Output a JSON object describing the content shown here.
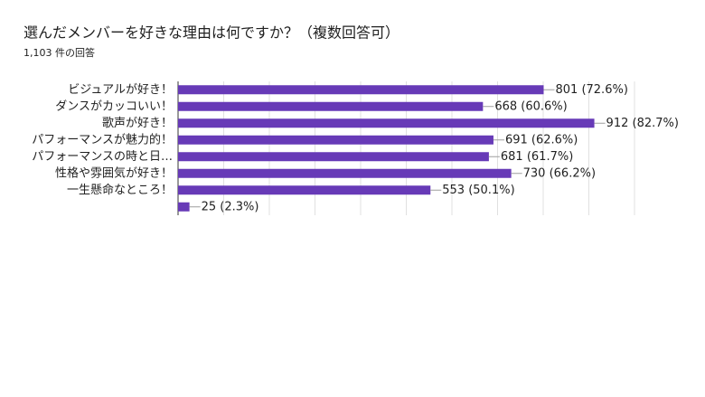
{
  "chart_data": {
    "type": "bar",
    "orientation": "horizontal",
    "title": "選んだメンバーを好きな理由は何ですか？（複数回答可）",
    "subtitle": "1,103 件の回答",
    "categories": [
      "ビジュアルが好き！",
      "ダンスがカッコいい！",
      "歌声が好き！",
      "パフォーマンスが魅力的！",
      "パフォーマンスの時と日…",
      "性格や雰囲気が好き！",
      "一生懸命なところ！",
      null
    ],
    "values": [
      801,
      668,
      912,
      691,
      681,
      730,
      553,
      25
    ],
    "value_labels": [
      "801 (72.6%)",
      "668 (60.6%)",
      "912 (82.7%)",
      "691 (62.6%)",
      "681 (61.7%)",
      "730 (66.2%)",
      "553 (50.1%)",
      "25 (2.3%)"
    ],
    "color": "#673ab7",
    "xlim": [
      0,
      1000
    ],
    "xticks": [
      0,
      100,
      200,
      300,
      400,
      500,
      600,
      700,
      800,
      900,
      1000
    ],
    "grid": true
  }
}
